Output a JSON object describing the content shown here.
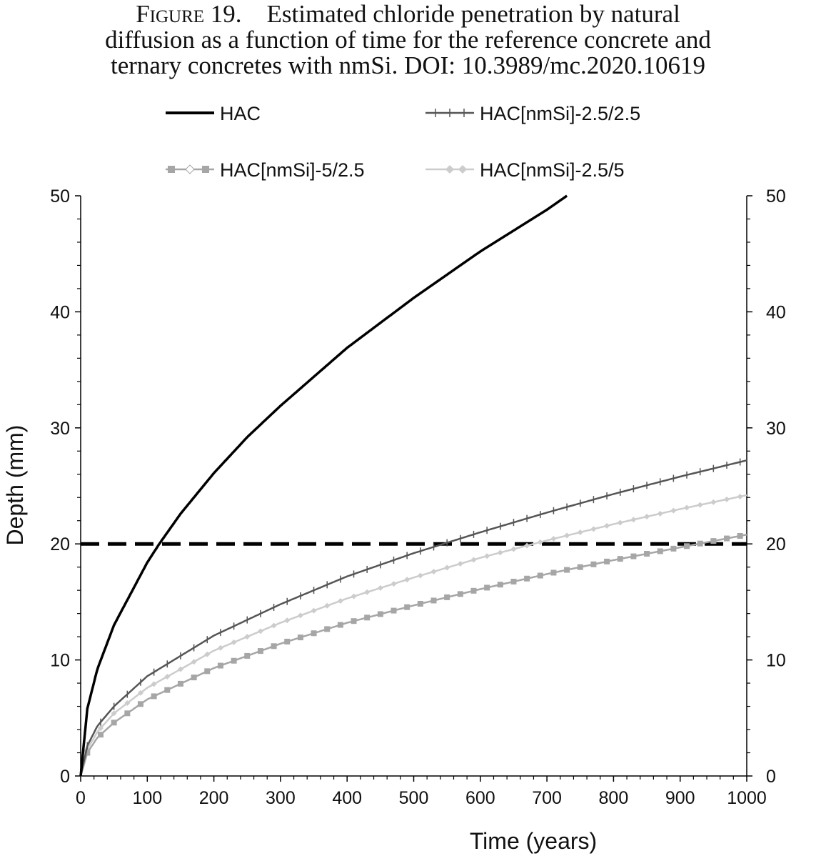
{
  "caption": {
    "figure_label": "Figure 19.",
    "line1_rest": "Estimated chloride penetration by natural",
    "line2": "diffusion as a function of time for the reference concrete and",
    "line3": "ternary concretes with nmSi.  DOI: 10.3989/mc.2020.10619"
  },
  "chart_data": {
    "type": "line",
    "xlabel": "Time (years)",
    "ylabel": "Depth (mm)",
    "xlim": [
      0,
      1000
    ],
    "ylim": [
      0,
      50
    ],
    "x_ticks": [
      0,
      100,
      200,
      300,
      400,
      500,
      600,
      700,
      800,
      900,
      1000
    ],
    "y_ticks": [
      0,
      10,
      20,
      30,
      40,
      50
    ],
    "secondary_y_axis": true,
    "grid": false,
    "legend_position": "top",
    "threshold_line": {
      "y": 20,
      "style": "dashed",
      "color": "#000000"
    },
    "series": [
      {
        "name": "HAC",
        "color": "#000000",
        "marker": "none",
        "x": [
          0,
          10,
          25,
          50,
          100,
          118,
          150,
          200,
          250,
          300,
          400,
          500,
          600,
          700,
          730
        ],
        "y": [
          0,
          5.8,
          9.2,
          13.0,
          18.4,
          20.0,
          22.6,
          26.1,
          29.2,
          31.9,
          36.9,
          41.2,
          45.2,
          48.8,
          50.0
        ]
      },
      {
        "name": "HAC[nmSi]-2.5/2.5",
        "color": "#555555",
        "marker": "plus",
        "x": [
          0,
          10,
          25,
          50,
          100,
          200,
          300,
          400,
          500,
          600,
          700,
          800,
          900,
          1000
        ],
        "y": [
          0,
          2.6,
          4.3,
          6.0,
          8.6,
          12.1,
          14.8,
          17.2,
          19.2,
          21.0,
          22.7,
          24.3,
          25.8,
          27.2
        ]
      },
      {
        "name": "HAC[nmSi]-5/2.5",
        "color": "#a6a6a6",
        "marker": "square",
        "x": [
          0,
          10,
          25,
          50,
          100,
          200,
          300,
          400,
          500,
          600,
          700,
          800,
          900,
          1000
        ],
        "y": [
          0,
          2.0,
          3.3,
          4.6,
          6.6,
          9.3,
          11.4,
          13.2,
          14.7,
          16.1,
          17.4,
          18.6,
          19.7,
          20.8
        ]
      },
      {
        "name": "HAC[nmSi]-2.5/5",
        "color": "#cccccc",
        "marker": "diamond",
        "x": [
          0,
          10,
          25,
          50,
          100,
          200,
          300,
          400,
          500,
          600,
          700,
          800,
          900,
          1000
        ],
        "y": [
          0,
          2.3,
          3.8,
          5.4,
          7.6,
          10.8,
          13.2,
          15.3,
          17.1,
          18.8,
          20.3,
          21.7,
          23.0,
          24.2
        ]
      }
    ]
  }
}
